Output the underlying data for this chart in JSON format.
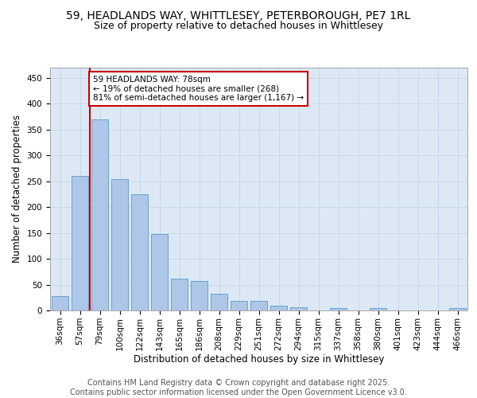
{
  "title_line1": "59, HEADLANDS WAY, WHITTLESEY, PETERBOROUGH, PE7 1RL",
  "title_line2": "Size of property relative to detached houses in Whittlesey",
  "xlabel": "Distribution of detached houses by size in Whittlesey",
  "ylabel": "Number of detached properties",
  "categories": [
    "36sqm",
    "57sqm",
    "79sqm",
    "100sqm",
    "122sqm",
    "143sqm",
    "165sqm",
    "186sqm",
    "208sqm",
    "229sqm",
    "251sqm",
    "272sqm",
    "294sqm",
    "315sqm",
    "337sqm",
    "358sqm",
    "380sqm",
    "401sqm",
    "423sqm",
    "444sqm",
    "466sqm"
  ],
  "values": [
    28,
    260,
    370,
    255,
    225,
    148,
    62,
    57,
    32,
    18,
    18,
    9,
    6,
    0,
    5,
    0,
    4,
    0,
    0,
    0,
    4
  ],
  "bar_color": "#aec6e8",
  "bar_edge_color": "#5a9ac9",
  "vline_x_index": 2,
  "vline_color": "#cc0000",
  "annotation_text": "59 HEADLANDS WAY: 78sqm\n← 19% of detached houses are smaller (268)\n81% of semi-detached houses are larger (1,167) →",
  "annotation_box_color": "#ffffff",
  "annotation_box_edge_color": "#cc0000",
  "ylim": [
    0,
    470
  ],
  "yticks": [
    0,
    50,
    100,
    150,
    200,
    250,
    300,
    350,
    400,
    450
  ],
  "grid_color": "#c8d8ea",
  "background_color": "#dce9f5",
  "footer_text": "Contains HM Land Registry data © Crown copyright and database right 2025.\nContains public sector information licensed under the Open Government Licence v3.0.",
  "title_fontsize": 10,
  "subtitle_fontsize": 9,
  "axis_label_fontsize": 8.5,
  "tick_fontsize": 7.5,
  "footer_fontsize": 7
}
